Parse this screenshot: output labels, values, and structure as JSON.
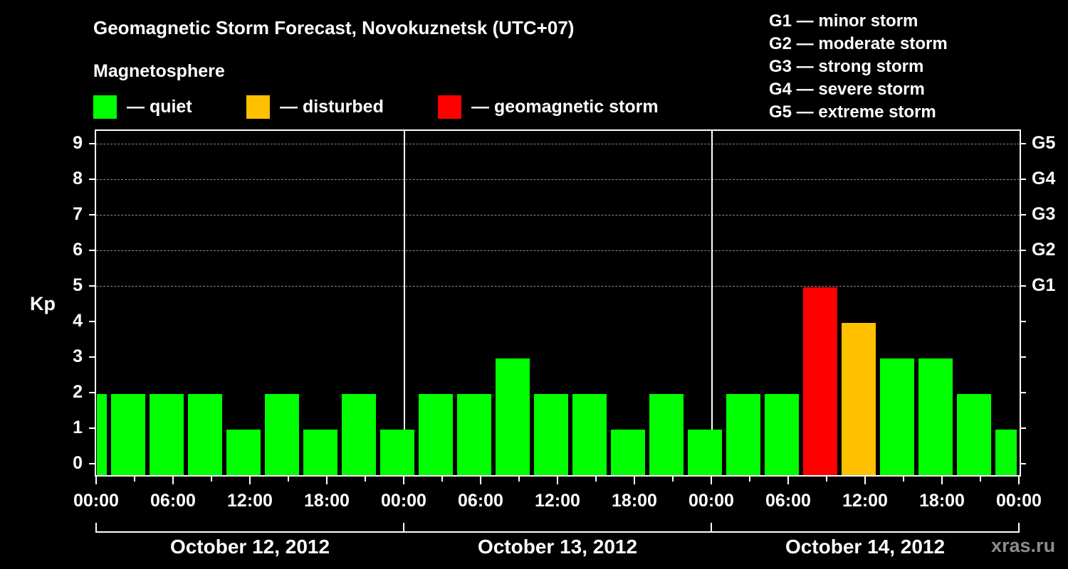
{
  "title": "Geomagnetic Storm Forecast, Novokuznetsk (UTC+07)",
  "subtitle": "Magnetosphere",
  "legend": [
    {
      "label": "— quiet",
      "color": "#00ff00"
    },
    {
      "label": "— disturbed",
      "color": "#ffc000"
    },
    {
      "label": "— geomagnetic storm",
      "color": "#ff0000"
    }
  ],
  "g_scale": [
    "G1 — minor storm",
    "G2 — moderate storm",
    "G3 — strong storm",
    "G4 — severe storm",
    "G5 — extreme storm"
  ],
  "watermark": "xras.ru",
  "chart_data": {
    "type": "bar",
    "title": "Geomagnetic Storm Forecast, Novokuznetsk (UTC+07)",
    "subtitle": "Magnetosphere",
    "xlabel": "",
    "ylabel": "Kp",
    "ylim": [
      0,
      9
    ],
    "yticks": [
      0,
      1,
      2,
      3,
      4,
      5,
      6,
      7,
      8,
      9
    ],
    "right_axis_labels": {
      "5": "G1",
      "6": "G2",
      "7": "G3",
      "8": "G4",
      "9": "G5"
    },
    "grid": "dashed horizontal at Kp 5-9",
    "x_tick_labels": [
      "00:00",
      "06:00",
      "12:00",
      "18:00",
      "00:00",
      "06:00",
      "12:00",
      "18:00",
      "00:00",
      "06:00",
      "12:00",
      "18:00",
      "00:00"
    ],
    "day_labels": [
      "October 12, 2012",
      "October 13, 2012",
      "October 14, 2012"
    ],
    "legend": [
      {
        "label": "quiet",
        "color": "#00ff00"
      },
      {
        "label": "disturbed",
        "color": "#ffc000"
      },
      {
        "label": "geomagnetic storm",
        "color": "#ff0000"
      }
    ],
    "categories": [
      "Oct 12 00:00 (partial)",
      "Oct 12 ~03:00",
      "Oct 12 ~06:00",
      "Oct 12 ~09:00",
      "Oct 12 ~12:00",
      "Oct 12 ~15:00",
      "Oct 12 ~18:00",
      "Oct 12 ~21:00",
      "Oct 13 00:00",
      "Oct 13 ~03:00",
      "Oct 13 ~06:00",
      "Oct 13 ~09:00",
      "Oct 13 ~12:00",
      "Oct 13 ~15:00",
      "Oct 13 ~18:00",
      "Oct 13 ~21:00",
      "Oct 14 00:00",
      "Oct 14 ~03:00",
      "Oct 14 ~06:00",
      "Oct 14 ~09:00",
      "Oct 14 ~12:00",
      "Oct 14 ~15:00",
      "Oct 14 ~18:00",
      "Oct 14 ~21:00",
      "Oct 15 00:00 (partial)"
    ],
    "values": [
      2,
      2,
      2,
      2,
      1,
      2,
      1,
      2,
      1,
      2,
      2,
      3,
      2,
      2,
      1,
      2,
      1,
      2,
      2,
      5,
      4,
      3,
      3,
      2,
      1
    ],
    "bar_colors": [
      "#00ff00",
      "#00ff00",
      "#00ff00",
      "#00ff00",
      "#00ff00",
      "#00ff00",
      "#00ff00",
      "#00ff00",
      "#00ff00",
      "#00ff00",
      "#00ff00",
      "#00ff00",
      "#00ff00",
      "#00ff00",
      "#00ff00",
      "#00ff00",
      "#00ff00",
      "#00ff00",
      "#00ff00",
      "#ff0000",
      "#ffc000",
      "#00ff00",
      "#00ff00",
      "#00ff00",
      "#00ff00"
    ]
  }
}
